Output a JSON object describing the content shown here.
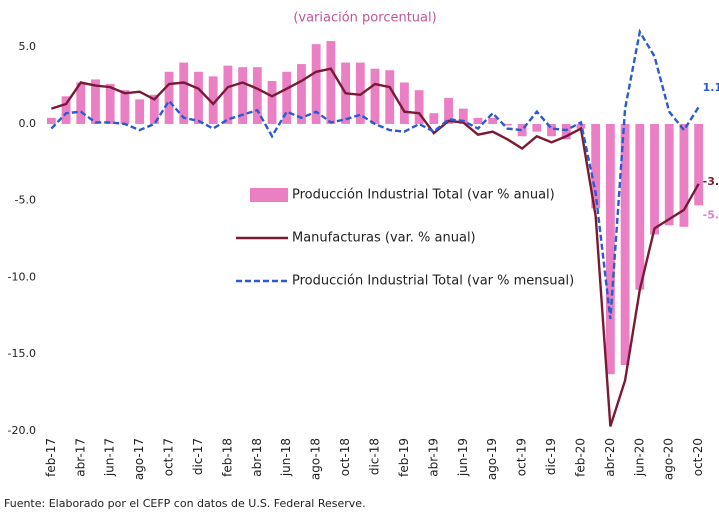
{
  "chart_data": {
    "type": "bar-line",
    "title": "(variación porcentual)",
    "source": "Fuente: Elaborado por el CEFP con datos de U.S. Federal Reserve.",
    "categories": [
      "feb-17",
      null,
      "abr-17",
      null,
      "jun-17",
      null,
      "ago-17",
      null,
      "oct-17",
      null,
      "dic-17",
      null,
      "feb-18",
      null,
      "abr-18",
      null,
      "jun-18",
      null,
      "ago-18",
      null,
      "oct-18",
      null,
      "dic-18",
      null,
      "feb-19",
      null,
      "abr-19",
      null,
      "jun-19",
      null,
      "ago-19",
      null,
      "oct-19",
      null,
      "dic-19",
      null,
      "feb-20",
      null,
      "abr-20",
      null,
      "jun-20",
      null,
      "ago-20",
      null,
      "oct-20"
    ],
    "series": [
      {
        "name": "Producción Industrial Total (var % anual)",
        "kind": "bar",
        "color": "#ea7fc4",
        "values": [
          0.4,
          1.8,
          2.7,
          2.9,
          2.6,
          2.2,
          1.6,
          1.9,
          3.4,
          4.0,
          3.4,
          3.1,
          3.8,
          3.7,
          3.7,
          2.8,
          3.4,
          3.9,
          5.2,
          5.4,
          4.0,
          4.0,
          3.6,
          3.5,
          2.7,
          2.2,
          0.7,
          1.7,
          1.0,
          0.4,
          0.4,
          -0.1,
          -0.8,
          -0.5,
          -0.8,
          -1.0,
          -0.3,
          -5.5,
          -16.3,
          -15.7,
          -10.8,
          -7.2,
          -6.6,
          -6.7,
          -5.3
        ]
      },
      {
        "name": "Manufacturas (var. % anual)",
        "kind": "line",
        "color": "#7a1a35",
        "values": [
          1.0,
          1.3,
          2.7,
          2.5,
          2.4,
          2.0,
          2.1,
          1.6,
          2.6,
          2.7,
          2.3,
          1.3,
          2.4,
          2.7,
          2.3,
          1.8,
          2.3,
          2.8,
          3.4,
          3.6,
          2.0,
          1.9,
          2.6,
          2.4,
          0.8,
          0.7,
          -0.6,
          0.2,
          0.1,
          -0.7,
          -0.5,
          -1.0,
          -1.6,
          -0.8,
          -1.2,
          -0.8,
          -0.3,
          -6.0,
          -19.7,
          -16.7,
          -10.8,
          -6.8,
          -6.2,
          -5.6,
          -3.9
        ]
      },
      {
        "name": "Producción Industrial Total (var % mensual)",
        "kind": "dashed",
        "color": "#2a5bd0",
        "values": [
          -0.3,
          0.7,
          0.8,
          0.1,
          0.1,
          0.0,
          -0.4,
          0.0,
          1.5,
          0.4,
          0.2,
          -0.3,
          0.3,
          0.6,
          0.9,
          -0.8,
          0.8,
          0.4,
          0.8,
          0.1,
          0.3,
          0.6,
          0.0,
          -0.4,
          -0.5,
          0.0,
          -0.5,
          0.3,
          0.2,
          -0.3,
          0.7,
          -0.3,
          -0.4,
          0.8,
          -0.3,
          -0.4,
          0.1,
          -4.5,
          -12.7,
          1.0,
          6.0,
          4.4,
          0.8,
          -0.4,
          1.1
        ]
      }
    ],
    "ylim": [
      -20,
      7
    ],
    "yticks": [
      {
        "value": 5,
        "label": "5.0"
      },
      {
        "value": 0,
        "label": "0.0"
      },
      {
        "value": -5,
        "label": "-5.0"
      },
      {
        "value": -10,
        "label": "-10.0"
      },
      {
        "value": -15,
        "label": "-15.0"
      },
      {
        "value": -20,
        "label": "-20.0"
      }
    ]
  }
}
